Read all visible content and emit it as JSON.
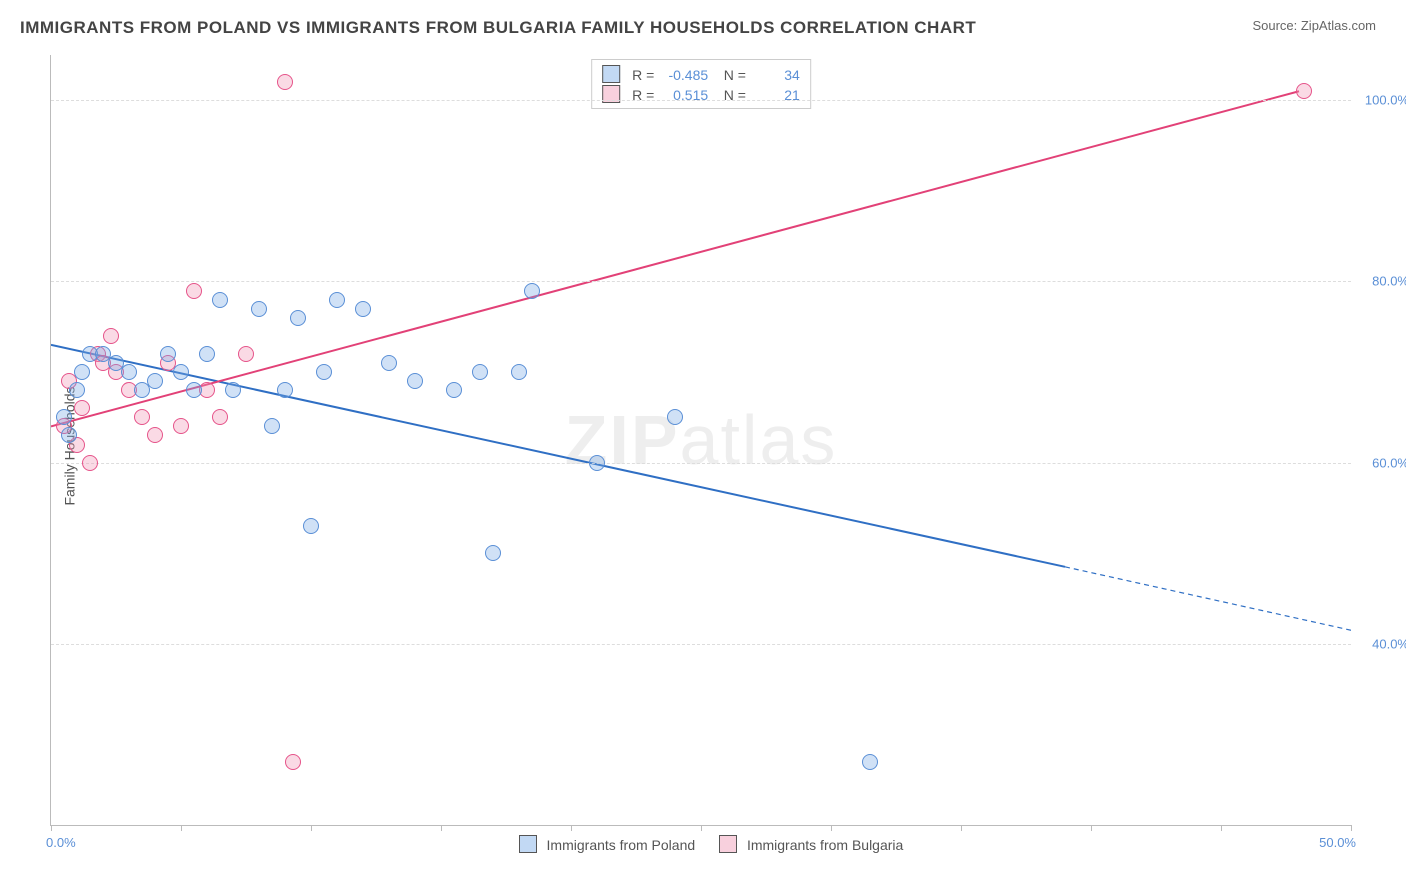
{
  "title": "IMMIGRANTS FROM POLAND VS IMMIGRANTS FROM BULGARIA FAMILY HOUSEHOLDS CORRELATION CHART",
  "source": "Source: ZipAtlas.com",
  "ylabel": "Family Households",
  "watermark_a": "ZIP",
  "watermark_b": "atlas",
  "chart": {
    "type": "scatter",
    "xlim": [
      0,
      50
    ],
    "ylim": [
      20,
      105
    ],
    "x_ticks": [
      0,
      5,
      10,
      15,
      20,
      25,
      30,
      35,
      40,
      45,
      50
    ],
    "x_tick_labels": {
      "0": "0.0%",
      "50": "50.0%"
    },
    "y_gridlines": [
      40,
      60,
      80,
      100
    ],
    "y_tick_labels": {
      "40": "40.0%",
      "60": "60.0%",
      "80": "80.0%",
      "100": "100.0%"
    },
    "background_color": "#ffffff",
    "grid_color": "#dddddd",
    "axis_color": "#bbbbbb",
    "tick_label_color": "#5a8fd6",
    "marker_size": 14,
    "series": {
      "poland": {
        "label": "Immigrants from Poland",
        "fill": "rgba(120,170,230,0.35)",
        "stroke": "#5a8fd6",
        "R": "-0.485",
        "N": "34",
        "trend": {
          "x1": 0,
          "y1": 73,
          "x2": 39,
          "y2": 48.5,
          "x2_dash": 50,
          "y2_dash": 41.5,
          "color": "#2f6fc4",
          "width": 2
        },
        "points": [
          [
            0.5,
            65
          ],
          [
            0.7,
            63
          ],
          [
            1.0,
            68
          ],
          [
            1.2,
            70
          ],
          [
            1.5,
            72
          ],
          [
            2.0,
            72
          ],
          [
            2.5,
            71
          ],
          [
            3.0,
            70
          ],
          [
            3.5,
            68
          ],
          [
            4.0,
            69
          ],
          [
            4.5,
            72
          ],
          [
            5.0,
            70
          ],
          [
            5.5,
            68
          ],
          [
            6.0,
            72
          ],
          [
            6.5,
            78
          ],
          [
            7.0,
            68
          ],
          [
            8.0,
            77
          ],
          [
            8.5,
            64
          ],
          [
            9.0,
            68
          ],
          [
            9.5,
            76
          ],
          [
            10.0,
            53
          ],
          [
            10.5,
            70
          ],
          [
            11.0,
            78
          ],
          [
            12.0,
            77
          ],
          [
            13.0,
            71
          ],
          [
            14.0,
            69
          ],
          [
            15.5,
            68
          ],
          [
            16.5,
            70
          ],
          [
            17.0,
            50
          ],
          [
            18.0,
            70
          ],
          [
            18.5,
            79
          ],
          [
            21.0,
            60
          ],
          [
            24.0,
            65
          ],
          [
            31.5,
            27
          ]
        ]
      },
      "bulgaria": {
        "label": "Immigrants from Bulgaria",
        "fill": "rgba(240,150,180,0.35)",
        "stroke": "#e6548a",
        "R": "0.515",
        "N": "21",
        "trend": {
          "x1": 0,
          "y1": 64,
          "x2": 48,
          "y2": 101,
          "color": "#e24177",
          "width": 2
        },
        "points": [
          [
            0.5,
            64
          ],
          [
            0.7,
            69
          ],
          [
            1.0,
            62
          ],
          [
            1.2,
            66
          ],
          [
            1.5,
            60
          ],
          [
            1.8,
            72
          ],
          [
            2.0,
            71
          ],
          [
            2.3,
            74
          ],
          [
            2.5,
            70
          ],
          [
            3.0,
            68
          ],
          [
            3.5,
            65
          ],
          [
            4.0,
            63
          ],
          [
            4.5,
            71
          ],
          [
            5.0,
            64
          ],
          [
            5.5,
            79
          ],
          [
            6.0,
            68
          ],
          [
            6.5,
            65
          ],
          [
            7.5,
            72
          ],
          [
            9.0,
            102
          ],
          [
            9.3,
            27
          ],
          [
            48.2,
            101
          ]
        ]
      }
    }
  },
  "legend_top": {
    "r_label": "R =",
    "n_label": "N ="
  }
}
